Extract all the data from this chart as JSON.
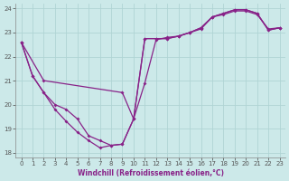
{
  "xlabel": "Windchill (Refroidissement éolien,°C)",
  "background_color": "#cce9e9",
  "grid_color": "#b0d4d4",
  "line_color": "#882288",
  "xlim": [
    -0.5,
    23.5
  ],
  "ylim": [
    17.8,
    24.2
  ],
  "xticks": [
    0,
    1,
    2,
    3,
    4,
    5,
    6,
    7,
    8,
    9,
    10,
    11,
    12,
    13,
    14,
    15,
    16,
    17,
    18,
    19,
    20,
    21,
    22,
    23
  ],
  "yticks": [
    18,
    19,
    20,
    21,
    22,
    23,
    24
  ],
  "series1_x": [
    0,
    1,
    2,
    3,
    4,
    5,
    6,
    7,
    8,
    9,
    10,
    11,
    12,
    13,
    14,
    15,
    16,
    17,
    18,
    19,
    20,
    21,
    22,
    23
  ],
  "series1_y": [
    22.6,
    21.2,
    20.5,
    20.0,
    19.8,
    19.4,
    18.7,
    18.5,
    18.3,
    18.35,
    19.4,
    20.9,
    22.7,
    22.8,
    22.85,
    23.0,
    23.15,
    23.65,
    23.75,
    23.9,
    23.9,
    23.75,
    23.15,
    23.2
  ],
  "series2_x": [
    0,
    1,
    2,
    3,
    4,
    5,
    6,
    7,
    8,
    9,
    10,
    11,
    12,
    13,
    14,
    15,
    16,
    17,
    18,
    19,
    20,
    21,
    22,
    23
  ],
  "series2_y": [
    22.6,
    21.2,
    20.5,
    19.8,
    19.3,
    18.85,
    18.5,
    18.2,
    18.3,
    18.35,
    19.4,
    22.75,
    22.75,
    22.75,
    22.85,
    23.0,
    23.2,
    23.65,
    23.8,
    23.95,
    23.95,
    23.8,
    23.1,
    23.2
  ],
  "series3_x": [
    0,
    2,
    9,
    10,
    11,
    12,
    13,
    14,
    15,
    16,
    17,
    18,
    19,
    20,
    21,
    22,
    23
  ],
  "series3_y": [
    22.6,
    21.0,
    20.5,
    19.4,
    22.75,
    22.75,
    22.75,
    22.85,
    23.0,
    23.2,
    23.65,
    23.8,
    23.95,
    23.95,
    23.8,
    23.1,
    23.2
  ]
}
